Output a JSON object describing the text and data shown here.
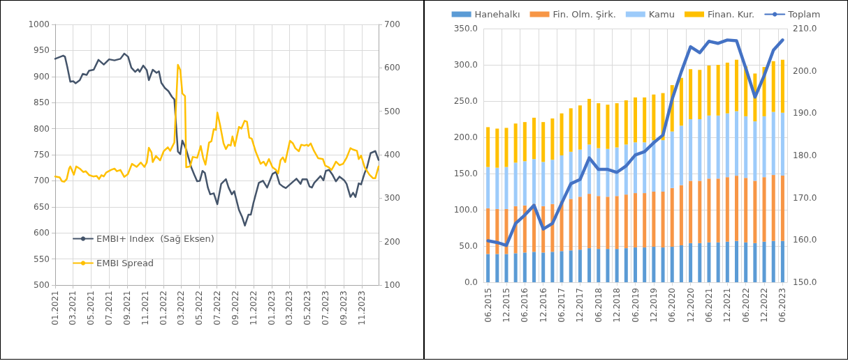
{
  "chart_data": [
    {
      "type": "line",
      "xlim": [
        "2021-01-01",
        "2023-12-28"
      ],
      "xticks": [
        {
          "value": "2021-01-01",
          "label": "01.2021"
        },
        {
          "value": "2021-03-01",
          "label": "03.2021"
        },
        {
          "value": "2021-05-01",
          "label": "05.2021"
        },
        {
          "value": "2021-07-01",
          "label": "07.2021"
        },
        {
          "value": "2021-09-01",
          "label": "09.2021"
        },
        {
          "value": "2021-11-01",
          "label": "11.2021"
        },
        {
          "value": "2022-01-01",
          "label": "01.2022"
        },
        {
          "value": "2022-03-01",
          "label": "03.2022"
        },
        {
          "value": "2022-05-01",
          "label": "05.2022"
        },
        {
          "value": "2022-07-01",
          "label": "07.2022"
        },
        {
          "value": "2022-09-01",
          "label": "09.2022"
        },
        {
          "value": "2022-11-01",
          "label": "11.2022"
        },
        {
          "value": "2023-01-01",
          "label": "01.2023"
        },
        {
          "value": "2023-03-01",
          "label": "03.2023"
        },
        {
          "value": "2023-05-01",
          "label": "05.2023"
        },
        {
          "value": "2023-07-01",
          "label": "07.2023"
        },
        {
          "value": "2023-09-01",
          "label": "09.2023"
        },
        {
          "value": "2023-11-01",
          "label": "11.2023"
        }
      ],
      "ylim": [
        500,
        1000
      ],
      "yticks": [
        500,
        550,
        600,
        650,
        700,
        750,
        800,
        850,
        900,
        950,
        1000
      ],
      "y2lim": [
        100,
        700
      ],
      "y2ticks": [
        100,
        200,
        300,
        400,
        500,
        600,
        700
      ],
      "grid": true,
      "legend": "bottom left",
      "marker": "none",
      "line_style": "solid",
      "series": [
        {
          "name": "EMBI+ Index  (Sağ Eksen)",
          "color": "#44546a",
          "x": [
            "2021-01-01",
            "2021-01-28",
            "2021-02-03",
            "2021-02-11",
            "2021-02-21",
            "2021-03-03",
            "2021-03-11",
            "2021-03-25",
            "2021-04-04",
            "2021-04-17",
            "2021-04-25",
            "2021-05-11",
            "2021-05-27",
            "2021-06-14",
            "2021-07-02",
            "2021-07-20",
            "2021-08-09",
            "2021-08-22",
            "2021-09-04",
            "2021-09-15",
            "2021-09-28",
            "2021-10-07",
            "2021-10-13",
            "2021-10-25",
            "2021-11-06",
            "2021-11-13",
            "2021-11-26",
            "2021-12-09",
            "2021-12-17",
            "2021-12-25",
            "2022-01-06",
            "2022-01-18",
            "2022-01-30",
            "2022-02-07",
            "2022-02-19",
            "2022-02-27",
            "2022-03-06",
            "2022-03-19",
            "2022-03-28",
            "2022-04-05",
            "2022-04-15",
            "2022-04-25",
            "2022-05-04",
            "2022-05-13",
            "2022-05-21",
            "2022-05-31",
            "2022-06-08",
            "2022-06-20",
            "2022-07-02",
            "2022-07-15",
            "2022-07-31",
            "2022-08-09",
            "2022-08-20",
            "2022-08-28",
            "2022-09-13",
            "2022-09-24",
            "2022-10-03",
            "2022-10-15",
            "2022-10-23",
            "2022-11-01",
            "2022-11-19",
            "2022-12-03",
            "2022-12-17",
            "2023-01-04",
            "2023-01-16",
            "2023-01-28",
            "2023-02-08",
            "2023-02-18",
            "2023-03-02",
            "2023-03-26",
            "2023-04-09",
            "2023-04-15",
            "2023-04-30",
            "2023-05-09",
            "2023-05-17",
            "2023-05-25",
            "2023-06-15",
            "2023-06-25",
            "2023-07-03",
            "2023-07-14",
            "2023-07-25",
            "2023-08-06",
            "2023-08-18",
            "2023-09-03",
            "2023-09-11",
            "2023-09-24",
            "2023-10-03",
            "2023-10-11",
            "2023-10-22",
            "2023-10-30",
            "2023-11-11",
            "2023-11-19",
            "2023-12-01",
            "2023-12-17",
            "2023-12-28"
          ],
          "values": [
            934,
            940,
            938,
            918,
            890,
            891,
            887,
            893,
            905,
            903,
            911,
            913,
            932,
            923,
            933,
            931,
            934,
            944,
            938,
            917,
            909,
            914,
            909,
            921,
            912,
            893,
            913,
            907,
            910,
            888,
            878,
            872,
            861,
            856,
            756,
            751,
            777,
            760,
            742,
            726,
            712,
            699,
            700,
            719,
            715,
            687,
            674,
            676,
            655,
            694,
            703,
            687,
            674,
            680,
            644,
            630,
            614,
            635,
            635,
            658,
            696,
            700,
            687,
            713,
            717,
            694,
            689,
            686,
            692,
            704,
            694,
            703,
            703,
            689,
            687,
            696,
            709,
            701,
            719,
            721,
            712,
            699,
            708,
            701,
            694,
            669,
            677,
            669,
            695,
            693,
            715,
            726,
            753,
            757,
            740
          ]
        },
        {
          "name": "EMBI Spread",
          "color": "#ffc000",
          "axis": "y2",
          "x": [
            "2021-01-01",
            "2021-01-16",
            "2021-01-24",
            "2021-02-01",
            "2021-02-09",
            "2021-02-17",
            "2021-02-21",
            "2021-03-05",
            "2021-03-13",
            "2021-03-25",
            "2021-04-06",
            "2021-04-14",
            "2021-04-26",
            "2021-05-09",
            "2021-05-21",
            "2021-05-29",
            "2021-06-06",
            "2021-06-14",
            "2021-06-22",
            "2021-07-08",
            "2021-07-20",
            "2021-07-28",
            "2021-08-09",
            "2021-08-22",
            "2021-09-03",
            "2021-09-17",
            "2021-10-03",
            "2021-10-17",
            "2021-10-29",
            "2021-11-06",
            "2021-11-13",
            "2021-11-22",
            "2021-11-26",
            "2021-12-07",
            "2021-12-21",
            "2022-01-02",
            "2022-01-16",
            "2022-01-24",
            "2022-02-07",
            "2022-02-19",
            "2022-02-27",
            "2022-03-06",
            "2022-03-15",
            "2022-03-19",
            "2022-04-01",
            "2022-04-10",
            "2022-04-25",
            "2022-05-07",
            "2022-05-15",
            "2022-05-23",
            "2022-06-04",
            "2022-06-12",
            "2022-06-20",
            "2022-06-27",
            "2022-07-02",
            "2022-07-11",
            "2022-07-23",
            "2022-07-31",
            "2022-08-08",
            "2022-08-16",
            "2022-08-22",
            "2022-08-30",
            "2022-09-13",
            "2022-09-21",
            "2022-10-02",
            "2022-10-10",
            "2022-10-18",
            "2022-10-26",
            "2022-11-09",
            "2022-11-25",
            "2022-12-05",
            "2022-12-13",
            "2022-12-23",
            "2023-01-04",
            "2023-01-16",
            "2023-01-23",
            "2023-01-31",
            "2023-02-08",
            "2023-02-16",
            "2023-03-04",
            "2023-03-14",
            "2023-03-22",
            "2023-04-03",
            "2023-04-11",
            "2023-04-22",
            "2023-04-30",
            "2023-05-05",
            "2023-05-13",
            "2023-05-24",
            "2023-06-07",
            "2023-06-23",
            "2023-07-01",
            "2023-07-13",
            "2023-07-22",
            "2023-07-29",
            "2023-08-06",
            "2023-08-18",
            "2023-08-30",
            "2023-09-11",
            "2023-09-24",
            "2023-10-02",
            "2023-10-16",
            "2023-10-22",
            "2023-10-30",
            "2023-11-11",
            "2023-11-27",
            "2023-12-09",
            "2023-12-17",
            "2023-12-28"
          ],
          "values": [
            350,
            348,
            339,
            338,
            344,
            368,
            373,
            354,
            373,
            368,
            360,
            362,
            353,
            350,
            351,
            344,
            353,
            350,
            359,
            365,
            368,
            362,
            365,
            349,
            355,
            379,
            372,
            382,
            372,
            382,
            416,
            405,
            383,
            397,
            387,
            408,
            417,
            409,
            428,
            607,
            595,
            541,
            535,
            371,
            373,
            395,
            393,
            420,
            393,
            377,
            428,
            431,
            459,
            457,
            497,
            469,
            426,
            413,
            423,
            421,
            442,
            420,
            464,
            460,
            478,
            476,
            439,
            437,
            406,
            379,
            384,
            375,
            390,
            371,
            365,
            357,
            387,
            394,
            383,
            432,
            426,
            415,
            408,
            423,
            421,
            423,
            420,
            426,
            409,
            392,
            390,
            375,
            371,
            365,
            373,
            384,
            376,
            379,
            393,
            415,
            412,
            409,
            390,
            398,
            371,
            354,
            346,
            346,
            373
          ]
        }
      ]
    },
    {
      "type": "bar",
      "stacked": true,
      "categories": [
        "06.2015",
        null,
        "12.2015",
        null,
        "06.2016",
        null,
        "12.2016",
        null,
        "06.2017",
        null,
        "12.2017",
        null,
        "06.2018",
        null,
        "12.2018",
        null,
        "06.2019",
        null,
        "12.2019",
        null,
        "06.2020",
        null,
        "12.2020",
        null,
        "06.2021",
        null,
        "12.2021",
        null,
        "06.2022",
        null,
        "12.2022",
        null,
        "06.2023"
      ],
      "ylim": [
        0,
        350
      ],
      "yticks": [
        {
          "value": 0,
          "label": "0.0"
        },
        {
          "value": 50,
          "label": "50.0"
        },
        {
          "value": 100,
          "label": "100.0"
        },
        {
          "value": 150,
          "label": "150.0"
        },
        {
          "value": 200,
          "label": "200.0"
        },
        {
          "value": 250,
          "label": "250.0"
        },
        {
          "value": 300,
          "label": "300.0"
        },
        {
          "value": 350,
          "label": "350.0"
        }
      ],
      "y2lim": [
        150,
        210
      ],
      "y2ticks": [
        {
          "value": 150,
          "label": "150.0"
        },
        {
          "value": 160,
          "label": "160.0"
        },
        {
          "value": 170,
          "label": "170.0"
        },
        {
          "value": 180,
          "label": "180.0"
        },
        {
          "value": 190,
          "label": "190.0"
        },
        {
          "value": 200,
          "label": "200.0"
        },
        {
          "value": 210,
          "label": "210.0"
        }
      ],
      "grid": true,
      "legend": "top",
      "marker": "none",
      "series": [
        {
          "name": "Hanehalkı",
          "color": "#5b9bd5",
          "values": [
            39,
            39,
            39,
            40,
            41,
            42,
            41,
            42,
            43,
            44,
            45,
            47,
            46,
            46,
            46,
            47,
            48,
            48,
            49,
            48,
            49,
            51,
            54,
            54,
            55,
            55,
            56,
            57,
            55,
            54,
            56,
            57,
            57
          ]
        },
        {
          "name": "Fin. Olm. Şirk.",
          "color": "#f79646",
          "values": [
            63,
            62,
            62,
            65,
            65,
            66,
            64,
            66,
            69,
            71,
            73,
            75,
            73,
            72,
            73,
            74,
            75,
            75,
            76,
            77,
            81,
            83,
            86,
            86,
            88,
            88,
            89,
            90,
            89,
            86,
            89,
            91,
            90
          ]
        },
        {
          "name": "Kamu",
          "color": "#9dcbfa",
          "values": [
            57,
            57,
            58,
            60,
            61,
            62,
            61,
            61,
            63,
            65,
            65,
            68,
            66,
            66,
            67,
            69,
            70,
            70,
            71,
            71,
            78,
            82,
            85,
            85,
            87,
            87,
            88,
            89,
            85,
            82,
            84,
            87,
            87
          ]
        },
        {
          "name": "Finan. Kur.",
          "color": "#ffc000",
          "values": [
            55,
            54,
            54,
            54,
            54,
            57,
            55,
            57,
            58,
            60,
            61,
            63,
            62,
            61,
            61,
            61,
            62,
            62,
            63,
            65,
            64,
            66,
            69,
            68,
            69,
            70,
            70,
            71,
            69,
            66,
            68,
            70,
            73
          ]
        },
        {
          "name": "Toplam",
          "color": "#4472c4",
          "type": "line",
          "axis": "y2",
          "values": [
            159.8,
            159.4,
            158.7,
            163.9,
            165.9,
            168.2,
            162.6,
            163.9,
            168.7,
            173.3,
            174.3,
            179.4,
            176.7,
            176.7,
            176.0,
            177.5,
            180.1,
            180.9,
            183.0,
            184.8,
            193.3,
            199.8,
            205.7,
            204.3,
            207.0,
            206.5,
            207.3,
            207.1,
            200.6,
            193.8,
            198.9,
            204.9,
            207.3
          ]
        }
      ]
    }
  ]
}
